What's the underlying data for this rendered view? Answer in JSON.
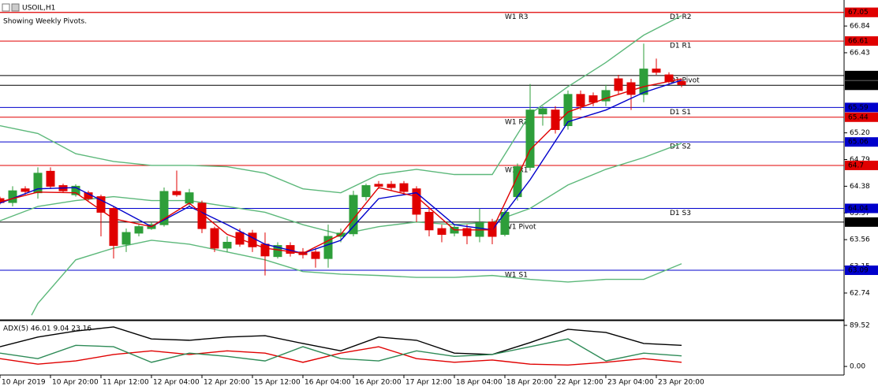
{
  "chart_data": {
    "type": "candlestick",
    "title": "USOIL,H1",
    "subtitle": "Showing Weekly Pivots.",
    "ylim": [
      62.34,
      67.24
    ],
    "yticks": [
      66.84,
      66.43,
      {
        "value": 65.2,
        "label": "65.20"
      },
      64.79,
      64.38,
      63.97,
      63.56,
      63.15,
      62.74
    ],
    "x_labels": [
      "10 Apr 2019",
      "10 Apr 20:00",
      "11 Apr 12:00",
      "12 Apr 04:00",
      "12 Apr 20:00",
      "15 Apr 12:00",
      "16 Apr 04:00",
      "16 Apr 20:00",
      "17 Apr 12:00",
      "18 Apr 04:00",
      "18 Apr 20:00",
      "22 Apr 12:00",
      "23 Apr 04:00",
      "23 Apr 20:00"
    ],
    "up_color": "#2e9e3a",
    "down_color": "#e00000",
    "candles": {
      "open": [
        64.19,
        64.13,
        64.34,
        64.28,
        64.61,
        64.39,
        64.25,
        64.28,
        64.22,
        64.04,
        63.49,
        63.66,
        63.73,
        63.79,
        64.3,
        64.12,
        64.12,
        63.73,
        63.43,
        63.67,
        63.66,
        63.49,
        63.3,
        63.47,
        63.37,
        63.37,
        63.27,
        63.61,
        63.65,
        64.22,
        64.41,
        64.41,
        64.42,
        64.34,
        63.98,
        63.73,
        63.66,
        63.73,
        63.61,
        63.83,
        63.64,
        64.22,
        64.67,
        65.49,
        65.55,
        65.31,
        65.79,
        65.77,
        65.69,
        66.03,
        65.97,
        65.79,
        66.18,
        66.09,
        65.99
      ],
      "high": [
        64.22,
        64.38,
        64.38,
        64.67,
        64.67,
        64.42,
        64.41,
        64.31,
        64.25,
        64.07,
        63.73,
        63.79,
        63.83,
        64.36,
        64.62,
        64.34,
        64.16,
        63.76,
        63.61,
        63.73,
        63.71,
        63.67,
        63.52,
        63.52,
        63.43,
        63.43,
        63.79,
        63.73,
        64.31,
        64.42,
        64.46,
        64.46,
        64.46,
        64.38,
        64.04,
        63.79,
        63.79,
        63.79,
        64.04,
        63.88,
        64.04,
        64.73,
        65.95,
        65.61,
        65.61,
        65.85,
        65.85,
        65.82,
        65.94,
        66.09,
        66.03,
        66.57,
        66.34,
        66.13,
        66.03
      ],
      "low": [
        64.1,
        64.07,
        64.25,
        64.19,
        64.34,
        64.28,
        64.22,
        64.16,
        63.61,
        63.27,
        63.37,
        63.61,
        63.71,
        63.76,
        64.22,
        64.07,
        63.66,
        63.37,
        63.37,
        63.45,
        63.37,
        63.01,
        63.27,
        63.3,
        63.27,
        63.13,
        63.13,
        63.52,
        63.61,
        64.16,
        64.34,
        64.31,
        64.25,
        63.83,
        63.61,
        63.52,
        63.61,
        63.49,
        63.52,
        63.49,
        63.61,
        64.16,
        64.62,
        65.31,
        65.19,
        65.25,
        65.55,
        65.61,
        65.61,
        65.79,
        65.55,
        65.67,
        66.09,
        65.94,
        65.9
      ],
      "close": [
        64.13,
        64.31,
        64.3,
        64.58,
        64.38,
        64.31,
        64.38,
        64.19,
        63.98,
        63.47,
        63.67,
        63.76,
        63.79,
        64.3,
        64.25,
        64.28,
        63.73,
        63.43,
        63.52,
        63.49,
        63.45,
        63.31,
        63.47,
        63.35,
        63.33,
        63.27,
        63.61,
        63.66,
        64.24,
        64.39,
        64.38,
        64.36,
        64.3,
        63.95,
        63.71,
        63.64,
        63.75,
        63.62,
        63.82,
        63.61,
        63.98,
        64.68,
        65.55,
        65.57,
        65.25,
        65.79,
        65.61,
        65.67,
        65.85,
        65.85,
        65.79,
        66.18,
        66.13,
        65.99,
        65.94
      ]
    },
    "lines": [
      {
        "color": "#5cb87a",
        "x": [
          0,
          3,
          6,
          9,
          12,
          15,
          18,
          21,
          24,
          27,
          30,
          33,
          36,
          39,
          42,
          45,
          48,
          51,
          54
        ],
        "values": [
          65.31,
          65.19,
          64.88,
          64.76,
          64.7,
          64.7,
          64.68,
          64.58,
          64.34,
          64.28,
          64.56,
          64.64,
          64.56,
          64.56,
          65.49,
          65.91,
          66.28,
          66.7,
          67.0
        ]
      },
      {
        "color": "#5cb87a",
        "x": [
          0,
          3,
          6,
          9,
          12,
          15,
          18,
          21,
          24,
          27,
          30,
          33,
          36,
          39,
          42,
          45,
          48,
          51,
          54
        ],
        "values": [
          63.85,
          64.07,
          64.16,
          64.22,
          64.16,
          64.16,
          64.07,
          63.98,
          63.79,
          63.64,
          63.76,
          63.83,
          63.79,
          63.83,
          64.04,
          64.4,
          64.64,
          64.82,
          65.04
        ]
      },
      {
        "color": "#5cb87a",
        "x": [
          2.5,
          3,
          6,
          9,
          12,
          15,
          18,
          21,
          24,
          27,
          30,
          33,
          36,
          39,
          42,
          45,
          48,
          51,
          54
        ],
        "values": [
          62.4,
          62.58,
          63.25,
          63.43,
          63.55,
          63.49,
          63.37,
          63.25,
          63.07,
          63.03,
          63.01,
          62.98,
          62.98,
          63.01,
          62.95,
          62.91,
          62.95,
          62.95,
          63.19
        ]
      },
      {
        "color": "#0000cc",
        "x": [
          0,
          3,
          6,
          9,
          12,
          15,
          18,
          21,
          24,
          27,
          30,
          33,
          36,
          39,
          42,
          45,
          48,
          51,
          54
        ],
        "values": [
          64.12,
          64.34,
          64.36,
          64.07,
          63.76,
          64.07,
          63.79,
          63.49,
          63.35,
          63.55,
          64.19,
          64.28,
          63.79,
          63.71,
          64.48,
          65.37,
          65.55,
          65.82,
          66.01
        ]
      },
      {
        "color": "#e00000",
        "x": [
          0,
          3,
          6,
          9,
          12,
          15,
          18,
          21,
          24,
          27,
          30,
          33,
          36,
          39,
          42,
          45,
          48,
          51,
          54
        ],
        "values": [
          64.14,
          64.29,
          64.28,
          63.88,
          63.76,
          64.12,
          63.64,
          63.43,
          63.35,
          63.64,
          64.36,
          64.22,
          63.71,
          63.71,
          64.94,
          65.52,
          65.73,
          65.91,
          66.03
        ]
      }
    ],
    "weekly_pivots": [
      {
        "label": "W1 R3",
        "value": 67.05,
        "color": "#e00000"
      },
      {
        "label": "W1 R2",
        "value": 65.44,
        "color": "#e00000"
      },
      {
        "label": "W1 R1",
        "value": 64.7,
        "color": "#e00000"
      },
      {
        "label": "W1 Pivot",
        "value": 63.83,
        "color": "#000000"
      },
      {
        "label": "W1 S1",
        "value": 63.09,
        "color": "#0000cc"
      }
    ],
    "daily_pivots": [
      {
        "label": "D1 R2",
        "value": 67.05,
        "color": "#e00000"
      },
      {
        "label": "D1 R1",
        "value": 66.61,
        "color": "#e00000"
      },
      {
        "label": "D1 Pivot",
        "value": 66.08,
        "color": "#000000"
      },
      {
        "label": "D1 S1",
        "value": 65.59,
        "color": "#0000cc"
      },
      {
        "label": "D1 S2",
        "value": 65.06,
        "color": "#0000cc"
      },
      {
        "label": "D1 S3",
        "value": 64.04,
        "color": "#0000cc"
      }
    ],
    "bid": {
      "value": 65.93,
      "color": "#000000"
    },
    "indicator": {
      "title": "ADX(5) 46.01 9.04 23.16",
      "ylim": [
        -17,
        98
      ],
      "yticks": [
        89.52,
        {
          "value": 0,
          "label": "0.00"
        }
      ],
      "x": [
        0,
        3,
        6,
        9,
        12,
        15,
        18,
        21,
        24,
        27,
        30,
        33,
        36,
        39,
        42,
        45,
        48,
        51,
        54
      ],
      "series": [
        {
          "color": "#000000",
          "values": [
            43,
            64,
            77,
            86,
            60,
            57,
            64,
            67,
            50,
            34,
            64,
            57,
            29,
            26,
            52,
            81,
            74,
            50,
            46
          ]
        },
        {
          "color": "#e00000",
          "values": [
            17,
            5,
            12,
            26,
            34,
            26,
            34,
            29,
            9,
            29,
            43,
            17,
            9,
            14,
            5,
            3,
            9,
            17,
            9
          ]
        },
        {
          "color": "#2e8b57",
          "values": [
            29,
            17,
            46,
            43,
            9,
            29,
            22,
            12,
            43,
            17,
            12,
            34,
            22,
            26,
            43,
            60,
            12,
            29,
            23
          ]
        }
      ]
    }
  }
}
